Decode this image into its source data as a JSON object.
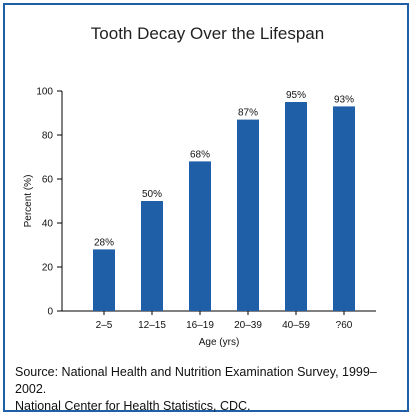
{
  "chart_data": {
    "type": "bar",
    "title": "Tooth Decay Over the Lifespan",
    "xlabel": "Age (yrs)",
    "ylabel": "Percent (%)",
    "ylim": [
      0,
      100
    ],
    "yticks": [
      "0",
      "20",
      "40",
      "60",
      "80",
      "100"
    ],
    "categories": [
      "2–5",
      "12–15",
      "16–19",
      "20–39",
      "40–59",
      "?60"
    ],
    "values": [
      28,
      50,
      68,
      87,
      95,
      93
    ],
    "data_labels": [
      "28%",
      "50%",
      "68%",
      "87%",
      "95%",
      "93%"
    ],
    "bar_color": "#1f5fa8",
    "grid": false,
    "legend": "none"
  },
  "source": {
    "line1": "Source: National Health and Nutrition Examination Survey, 1999–2002.",
    "line2": "National Center for Health Statistics, CDC."
  }
}
